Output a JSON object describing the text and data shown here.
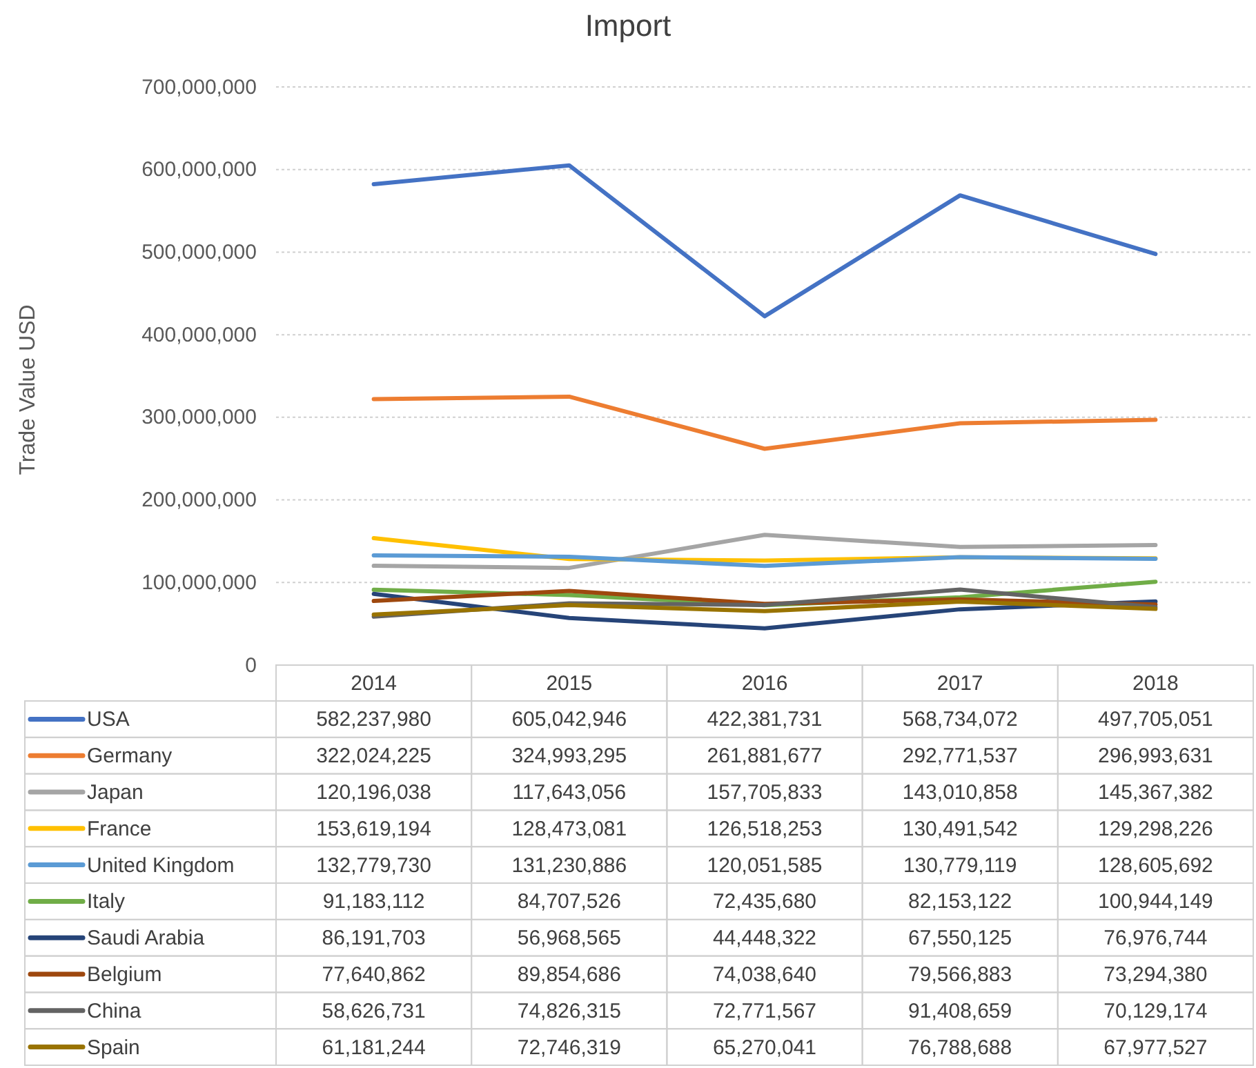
{
  "chart_data": {
    "type": "line",
    "title": "Import",
    "ylabel": "Trade Value USD",
    "categories": [
      "2014",
      "2015",
      "2016",
      "2017",
      "2018"
    ],
    "series": [
      {
        "name": "USA",
        "color": "#4472c4",
        "values": [
          582237980,
          605042946,
          422381731,
          568734072,
          497705051
        ],
        "value_labels": [
          "582,237,980",
          "605,042,946",
          "422,381,731",
          "568,734,072",
          "497,705,051"
        ]
      },
      {
        "name": "Germany",
        "color": "#ed7d31",
        "values": [
          322024225,
          324993295,
          261881677,
          292771537,
          296993631
        ],
        "value_labels": [
          "322,024,225",
          "324,993,295",
          "261,881,677",
          "292,771,537",
          "296,993,631"
        ]
      },
      {
        "name": "Japan",
        "color": "#a5a5a5",
        "values": [
          120196038,
          117643056,
          157705833,
          143010858,
          145367382
        ],
        "value_labels": [
          "120,196,038",
          "117,643,056",
          "157,705,833",
          "143,010,858",
          "145,367,382"
        ]
      },
      {
        "name": "France",
        "color": "#ffc000",
        "values": [
          153619194,
          128473081,
          126518253,
          130491542,
          129298226
        ],
        "value_labels": [
          "153,619,194",
          "128,473,081",
          "126,518,253",
          "130,491,542",
          "129,298,226"
        ]
      },
      {
        "name": "United Kingdom",
        "color": "#5b9bd5",
        "values": [
          132779730,
          131230886,
          120051585,
          130779119,
          128605692
        ],
        "value_labels": [
          "132,779,730",
          "131,230,886",
          "120,051,585",
          "130,779,119",
          "128,605,692"
        ]
      },
      {
        "name": "Italy",
        "color": "#70ad47",
        "values": [
          91183112,
          84707526,
          72435680,
          82153122,
          100944149
        ],
        "value_labels": [
          "91,183,112",
          "84,707,526",
          "72,435,680",
          "82,153,122",
          "100,944,149"
        ]
      },
      {
        "name": "Saudi Arabia",
        "color": "#264478",
        "values": [
          86191703,
          56968565,
          44448322,
          67550125,
          76976744
        ],
        "value_labels": [
          "86,191,703",
          "56,968,565",
          "44,448,322",
          "67,550,125",
          "76,976,744"
        ]
      },
      {
        "name": "Belgium",
        "color": "#9e480e",
        "values": [
          77640862,
          89854686,
          74038640,
          79566883,
          73294380
        ],
        "value_labels": [
          "77,640,862",
          "89,854,686",
          "74,038,640",
          "79,566,883",
          "73,294,380"
        ]
      },
      {
        "name": "China",
        "color": "#636363",
        "values": [
          58626731,
          74826315,
          72771567,
          91408659,
          70129174
        ],
        "value_labels": [
          "58,626,731",
          "74,826,315",
          "72,771,567",
          "91,408,659",
          "70,129,174"
        ]
      },
      {
        "name": "Spain",
        "color": "#997300",
        "values": [
          61181244,
          72746319,
          65270041,
          76788688,
          67977527
        ],
        "value_labels": [
          "61,181,244",
          "72,746,319",
          "65,270,041",
          "76,788,688",
          "67,977,527"
        ]
      }
    ],
    "ylim": [
      0,
      700000000
    ],
    "yticks": [
      0,
      {
        "value": 100000000,
        "label": "100,000,000"
      },
      {
        "value": 200000000,
        "label": "200,000,000"
      },
      {
        "value": 300000000,
        "label": "300,000,000"
      },
      {
        "value": 400000000,
        "label": "400,000,000"
      },
      {
        "value": 500000000,
        "label": "500,000,000"
      },
      {
        "value": 600000000,
        "label": "600,000,000"
      },
      {
        "value": 700000000,
        "label": "700,000,000"
      }
    ],
    "grid": "y",
    "legend": "bottom"
  }
}
